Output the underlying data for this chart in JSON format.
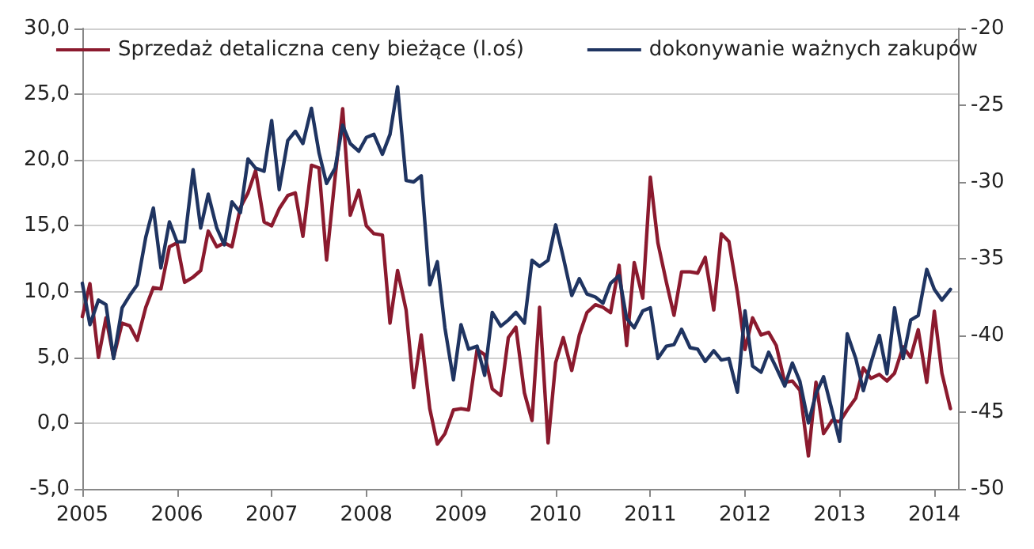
{
  "chart_data": {
    "type": "line",
    "legend": "top",
    "grid": "y",
    "marker": "none",
    "line_style": "solid",
    "x": [
      2005,
      2005.08,
      2005.17,
      2005.25,
      2005.33,
      2005.42,
      2005.5,
      2005.58,
      2005.67,
      2005.75,
      2005.83,
      2005.92,
      2006,
      2006.08,
      2006.17,
      2006.25,
      2006.33,
      2006.42,
      2006.5,
      2006.58,
      2006.67,
      2006.75,
      2006.83,
      2006.92,
      2007,
      2007.08,
      2007.17,
      2007.25,
      2007.33,
      2007.42,
      2007.5,
      2007.58,
      2007.67,
      2007.75,
      2007.83,
      2007.92,
      2008,
      2008.08,
      2008.17,
      2008.25,
      2008.33,
      2008.42,
      2008.5,
      2008.58,
      2008.67,
      2008.75,
      2008.83,
      2008.92,
      2009,
      2009.08,
      2009.17,
      2009.25,
      2009.33,
      2009.42,
      2009.5,
      2009.58,
      2009.67,
      2009.75,
      2009.83,
      2009.92,
      2010,
      2010.08,
      2010.17,
      2010.25,
      2010.33,
      2010.42,
      2010.5,
      2010.58,
      2010.67,
      2010.75,
      2010.83,
      2010.92,
      2011,
      2011.08,
      2011.17,
      2011.25,
      2011.33,
      2011.42,
      2011.5,
      2011.58,
      2011.67,
      2011.75,
      2011.83,
      2011.92,
      2012,
      2012.08,
      2012.17,
      2012.25,
      2012.33,
      2012.42,
      2012.5,
      2012.58,
      2012.67,
      2012.75,
      2012.83,
      2012.92,
      2013,
      2013.08,
      2013.17,
      2013.25,
      2013.33,
      2013.42,
      2013.5,
      2013.58,
      2013.67,
      2013.75,
      2013.83,
      2013.92,
      2014,
      2014.08,
      2014.17
    ],
    "xlim": [
      2005,
      2014.25
    ],
    "xticks": [
      2005,
      2006,
      2007,
      2008,
      2009,
      2010,
      2011,
      2012,
      2013,
      2014
    ],
    "ylim": [
      -5,
      30
    ],
    "yticks": [
      {
        "value": -5,
        "label": "-5,0"
      },
      {
        "value": 0,
        "label": "0,0"
      },
      {
        "value": 5,
        "label": "5,0"
      },
      {
        "value": 10,
        "label": "10,0"
      },
      {
        "value": 15,
        "label": "15,0"
      },
      {
        "value": 20,
        "label": "20,0"
      },
      {
        "value": 25,
        "label": "25,0"
      },
      {
        "value": 30,
        "label": "30,0"
      }
    ],
    "y2lim": [
      -50,
      -20
    ],
    "y2ticks": [
      -50,
      -45,
      -40,
      -35,
      -30,
      -25,
      -20
    ],
    "series": [
      {
        "name": "Sprzedaż detaliczna ceny bieżące (l.oś)",
        "color": "#8b1a2e",
        "values": [
          8.1,
          10.6,
          5.0,
          8.0,
          5.0,
          7.6,
          7.4,
          6.3,
          8.8,
          10.3,
          10.2,
          13.4,
          13.7,
          10.7,
          11.1,
          11.6,
          14.6,
          13.4,
          13.7,
          13.4,
          16.4,
          17.5,
          19.2,
          15.3,
          15.0,
          16.3,
          17.3,
          17.5,
          14.2,
          19.6,
          19.4,
          12.4,
          18.7,
          23.9,
          15.8,
          17.7,
          15.0,
          14.4,
          14.3,
          7.6,
          11.6,
          8.6,
          2.7,
          6.7,
          1.1,
          -1.6,
          -0.8,
          1.0,
          1.1,
          1.0,
          5.6,
          5.2,
          2.6,
          2.1,
          6.5,
          7.3,
          2.3,
          0.2,
          8.8,
          -1.5,
          4.6,
          6.5,
          4.0,
          6.7,
          8.4,
          9.0,
          8.8,
          8.4,
          12.0,
          5.9,
          12.2,
          9.5,
          18.7,
          13.7,
          10.7,
          8.2,
          11.5,
          11.5,
          11.4,
          12.6,
          8.6,
          14.4,
          13.8,
          9.9,
          5.6,
          8.0,
          6.7,
          6.9,
          5.9,
          3.1,
          3.2,
          2.5,
          -2.5,
          3.1,
          -0.8,
          0.2,
          0.1,
          1.0,
          1.9,
          4.2,
          3.4,
          3.7,
          3.2,
          3.8,
          5.8,
          5.0,
          7.1,
          3.1,
          8.5,
          3.8,
          1.1
        ]
      },
      {
        "name": "dokonywanie ważnych zakupów",
        "color": "#1f3461",
        "axis": "y2",
        "values": [
          -36.6,
          -39.3,
          -37.7,
          -38.0,
          -41.5,
          -38.2,
          -37.4,
          -36.7,
          -33.6,
          -31.7,
          -35.6,
          -32.6,
          -33.9,
          -33.9,
          -29.2,
          -33.0,
          -30.8,
          -33.0,
          -34.1,
          -31.3,
          -32.0,
          -28.5,
          -29.1,
          -29.3,
          -26.0,
          -30.5,
          -27.3,
          -26.7,
          -27.5,
          -25.2,
          -28.1,
          -30.1,
          -29.1,
          -26.3,
          -27.5,
          -28.0,
          -27.1,
          -26.9,
          -28.2,
          -26.9,
          -23.8,
          -29.9,
          -30.0,
          -29.6,
          -36.7,
          -35.2,
          -39.5,
          -42.9,
          -39.3,
          -40.9,
          -40.7,
          -42.6,
          -38.5,
          -39.4,
          -39.0,
          -38.5,
          -39.2,
          -35.1,
          -35.5,
          -35.1,
          -32.8,
          -34.9,
          -37.4,
          -36.3,
          -37.3,
          -37.5,
          -37.9,
          -36.6,
          -36.1,
          -38.9,
          -39.5,
          -38.4,
          -38.2,
          -41.5,
          -40.7,
          -40.6,
          -39.6,
          -40.8,
          -40.9,
          -41.7,
          -41.0,
          -41.6,
          -41.5,
          -43.7,
          -38.4,
          -42.0,
          -42.4,
          -41.1,
          -42.1,
          -43.3,
          -41.8,
          -43.0,
          -45.7,
          -43.8,
          -42.7,
          -44.9,
          -46.9,
          -39.9,
          -41.5,
          -43.6,
          -41.8,
          -40.0,
          -42.5,
          -38.2,
          -41.5,
          -39.0,
          -38.7,
          -35.7,
          -37.0,
          -37.7,
          -37.0
        ]
      }
    ]
  }
}
